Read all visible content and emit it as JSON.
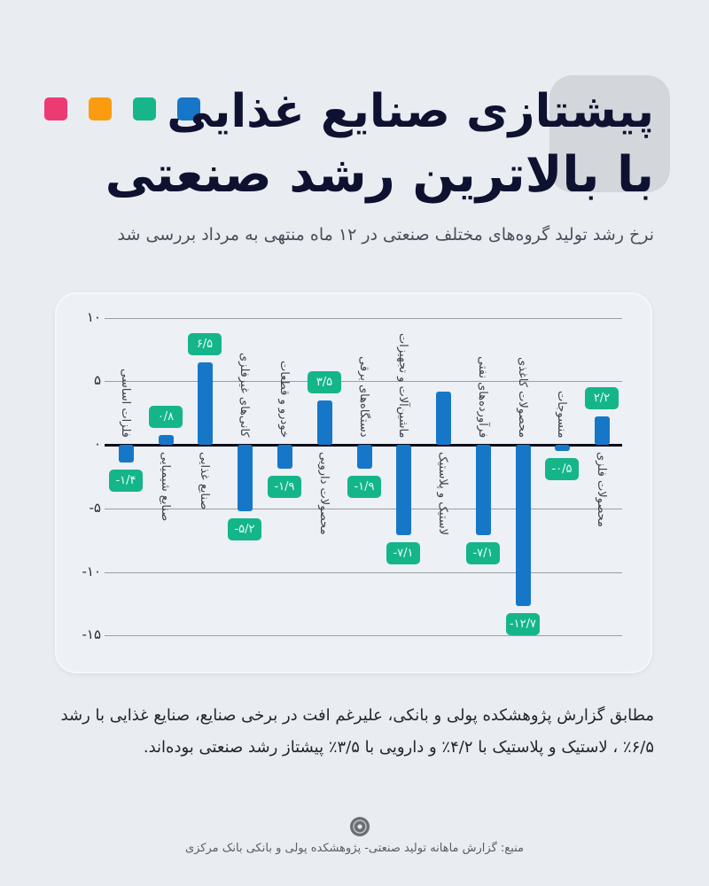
{
  "header": {
    "title_line1": "پیشتازی صنایع غذایی",
    "title_line2": "با بالاترین رشد صنعتی",
    "subtitle": "نرخ رشد تولید گروه‌های مختلف صنعتی در ۱۲ ماه منتهی به مرداد بررسی شد",
    "decor_colors": [
      "#ec3a73",
      "#fb9b10",
      "#17b58a",
      "#1677c9"
    ]
  },
  "body": {
    "paragraph": "مطابق گزارش پژوهشکده پولی و بانکی، علیرغم افت در برخی صنایع، صنایع غذایی با رشد ۶/۵٪ ، لاستیک و پلاستیک با ۴/۲٪ و دارویی با ۳/۵٪ پیشتاز رشد صنعتی بوده‌اند."
  },
  "footer": {
    "source": "منبع: گزارش ماهانه تولید صنعتی- پژوهشکده پولی و بانکی بانک مرکزی"
  },
  "colors": {
    "bar": "#1677c9",
    "label_bg": "#15b58a",
    "background": "#e9edf2"
  },
  "chart_data": {
    "type": "bar",
    "title": "نرخ رشد تولید گروه‌های مختلف صنعتی در ۱۲ ماه منتهی به مرداد",
    "xlabel": "",
    "ylabel": "",
    "ylim": [
      -15,
      10
    ],
    "yticks": [
      "۱۰",
      "۵",
      "۰",
      "-۵",
      "-۱۰",
      "-۱۵"
    ],
    "ytick_values": [
      10,
      5,
      0,
      -5,
      -10,
      -15
    ],
    "grid": true,
    "legend": null,
    "categories": [
      "فلزات اساسی",
      "صنایع شیمیایی",
      "صنایع غذایی",
      "کانی‌های غیرفلزی",
      "خودرو و قطعات",
      "محصولات دارویی",
      "دستگاه‌های برقی",
      "ماشین‌آلات و تجهیزات",
      "لاستیک و پلاستیک",
      "فرآورده‌های نفتی",
      "محصولات کاغذی",
      "منسوجات",
      "محصولات فلزی"
    ],
    "values": [
      -1.4,
      0.8,
      6.5,
      -5.2,
      -1.9,
      3.5,
      -1.9,
      -7.1,
      4.2,
      -7.1,
      -12.7,
      -0.5,
      2.2
    ],
    "value_labels": [
      "-۱/۴",
      "۰/۸",
      "۶/۵",
      "-۵/۲",
      "-۱/۹",
      "۳/۵",
      "-۱/۹",
      "-۷/۱",
      "",
      "-۷/۱",
      "-۱۲/۷",
      "-۰/۵",
      "۲/۲"
    ]
  }
}
